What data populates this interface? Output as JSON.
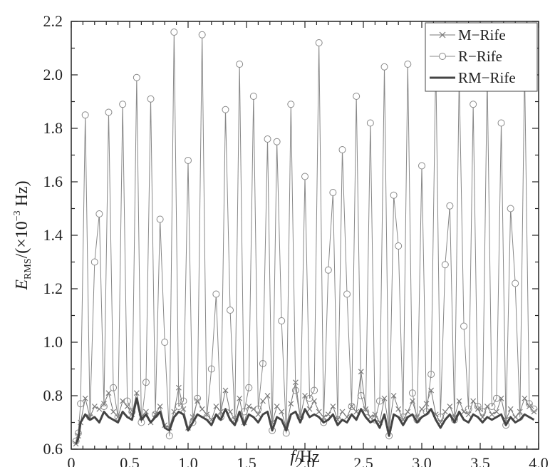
{
  "chart_data": {
    "type": "line",
    "xlabel_italic": "f",
    "xlabel_unit": "/Hz",
    "ylabel_italic": "E",
    "ylabel_sub": "RMS",
    "ylabel_unit": "/(×10",
    "ylabel_exp": "−3",
    "ylabel_tail": " Hz)",
    "xlim": [
      0,
      4
    ],
    "ylim": [
      0.6,
      2.2
    ],
    "xticks": [
      0,
      0.5,
      1,
      1.5,
      2,
      2.5,
      3,
      3.5,
      4
    ],
    "xtick_labels": [
      "0",
      "0.5",
      "1.0",
      "1.5",
      "2.0",
      "2.5",
      "3.0",
      "3.5",
      "4.0"
    ],
    "yticks": [
      0.6,
      0.8,
      1.0,
      1.2,
      1.4,
      1.6,
      1.8,
      2.0,
      2.2
    ],
    "ytick_labels": [
      "0.6",
      "0.8",
      "1.0",
      "1.2",
      "1.4",
      "1.6",
      "1.8",
      "2.0",
      "2.2"
    ],
    "legend_position": "top-right",
    "grid": false,
    "series": [
      {
        "name": "M−Rife",
        "marker": "x",
        "color": "#777777",
        "x": [
          0.04,
          0.06,
          0.08,
          0.12,
          0.16,
          0.2,
          0.24,
          0.28,
          0.32,
          0.36,
          0.4,
          0.44,
          0.48,
          0.52,
          0.56,
          0.6,
          0.64,
          0.68,
          0.72,
          0.76,
          0.8,
          0.84,
          0.88,
          0.92,
          0.96,
          1.0,
          1.04,
          1.08,
          1.12,
          1.16,
          1.2,
          1.24,
          1.28,
          1.32,
          1.36,
          1.4,
          1.44,
          1.48,
          1.52,
          1.56,
          1.6,
          1.64,
          1.68,
          1.72,
          1.76,
          1.8,
          1.84,
          1.88,
          1.92,
          1.96,
          2.0,
          2.04,
          2.08,
          2.12,
          2.16,
          2.2,
          2.24,
          2.28,
          2.32,
          2.36,
          2.4,
          2.44,
          2.48,
          2.52,
          2.56,
          2.6,
          2.64,
          2.68,
          2.72,
          2.76,
          2.8,
          2.84,
          2.88,
          2.92,
          2.96,
          3.0,
          3.04,
          3.08,
          3.12,
          3.16,
          3.2,
          3.24,
          3.28,
          3.32,
          3.36,
          3.4,
          3.44,
          3.48,
          3.52,
          3.56,
          3.6,
          3.64,
          3.68,
          3.72,
          3.76,
          3.8,
          3.84,
          3.88,
          3.92,
          3.96
        ],
        "values": [
          0.62,
          0.65,
          0.7,
          0.79,
          0.72,
          0.76,
          0.75,
          0.77,
          0.81,
          0.74,
          0.72,
          0.78,
          0.76,
          0.73,
          0.81,
          0.72,
          0.74,
          0.7,
          0.73,
          0.76,
          0.69,
          0.68,
          0.74,
          0.83,
          0.75,
          0.68,
          0.72,
          0.78,
          0.75,
          0.73,
          0.71,
          0.76,
          0.74,
          0.82,
          0.74,
          0.71,
          0.79,
          0.7,
          0.76,
          0.75,
          0.73,
          0.78,
          0.8,
          0.7,
          0.76,
          0.74,
          0.68,
          0.77,
          0.85,
          0.72,
          0.8,
          0.75,
          0.78,
          0.74,
          0.72,
          0.73,
          0.76,
          0.71,
          0.74,
          0.72,
          0.76,
          0.74,
          0.89,
          0.75,
          0.72,
          0.73,
          0.7,
          0.79,
          0.68,
          0.8,
          0.75,
          0.71,
          0.74,
          0.78,
          0.72,
          0.75,
          0.77,
          0.82,
          0.73,
          0.7,
          0.74,
          0.76,
          0.72,
          0.78,
          0.74,
          0.73,
          0.78,
          0.75,
          0.72,
          0.76,
          0.73,
          0.74,
          0.79,
          0.71,
          0.75,
          0.72,
          0.74,
          0.79,
          0.76,
          0.74
        ]
      },
      {
        "name": "R−Rife",
        "marker": "circle",
        "color": "#888888",
        "x": [
          0.04,
          0.06,
          0.08,
          0.12,
          0.16,
          0.2,
          0.24,
          0.28,
          0.32,
          0.36,
          0.4,
          0.44,
          0.48,
          0.52,
          0.56,
          0.6,
          0.64,
          0.68,
          0.72,
          0.76,
          0.8,
          0.84,
          0.88,
          0.92,
          0.96,
          1.0,
          1.04,
          1.08,
          1.12,
          1.16,
          1.2,
          1.24,
          1.28,
          1.32,
          1.36,
          1.4,
          1.44,
          1.48,
          1.52,
          1.56,
          1.6,
          1.64,
          1.68,
          1.72,
          1.76,
          1.8,
          1.84,
          1.88,
          1.92,
          1.96,
          2.0,
          2.04,
          2.08,
          2.12,
          2.16,
          2.2,
          2.24,
          2.28,
          2.32,
          2.36,
          2.4,
          2.44,
          2.48,
          2.52,
          2.56,
          2.6,
          2.64,
          2.68,
          2.72,
          2.76,
          2.8,
          2.84,
          2.88,
          2.92,
          2.96,
          3.0,
          3.04,
          3.08,
          3.12,
          3.16,
          3.2,
          3.24,
          3.28,
          3.32,
          3.36,
          3.4,
          3.44,
          3.48,
          3.52,
          3.56,
          3.6,
          3.64,
          3.68,
          3.72,
          3.76,
          3.8,
          3.84,
          3.88,
          3.92,
          3.96
        ],
        "values": [
          0.63,
          0.66,
          0.77,
          1.85,
          0.72,
          1.3,
          1.48,
          0.76,
          1.86,
          0.83,
          0.72,
          1.89,
          0.78,
          0.74,
          1.99,
          0.7,
          0.85,
          1.91,
          0.73,
          1.46,
          1.0,
          0.65,
          2.16,
          0.76,
          0.78,
          1.68,
          0.7,
          0.79,
          2.15,
          0.72,
          0.9,
          1.18,
          0.72,
          1.87,
          1.12,
          0.71,
          2.04,
          0.74,
          0.83,
          1.92,
          0.75,
          0.92,
          1.76,
          0.67,
          1.75,
          1.08,
          0.66,
          1.89,
          0.82,
          0.72,
          1.62,
          0.79,
          0.82,
          2.12,
          0.7,
          1.27,
          1.56,
          0.71,
          1.72,
          1.18,
          0.76,
          1.92,
          0.8,
          0.74,
          1.82,
          0.71,
          0.78,
          2.03,
          0.65,
          1.55,
          1.36,
          0.72,
          2.04,
          0.81,
          0.71,
          1.66,
          0.74,
          0.88,
          2.05,
          0.72,
          1.29,
          1.51,
          0.71,
          2.0,
          1.06,
          0.75,
          1.89,
          0.76,
          0.74,
          2.0,
          0.76,
          0.79,
          1.82,
          0.69,
          1.5,
          1.22,
          0.72,
          2.02,
          0.77,
          0.75
        ]
      },
      {
        "name": "RM−Rife",
        "marker": "none",
        "color": "#444444",
        "x": [
          0.04,
          0.06,
          0.08,
          0.12,
          0.16,
          0.2,
          0.24,
          0.28,
          0.32,
          0.36,
          0.4,
          0.44,
          0.48,
          0.52,
          0.56,
          0.6,
          0.64,
          0.68,
          0.72,
          0.76,
          0.8,
          0.84,
          0.88,
          0.92,
          0.96,
          1.0,
          1.04,
          1.08,
          1.12,
          1.16,
          1.2,
          1.24,
          1.28,
          1.32,
          1.36,
          1.4,
          1.44,
          1.48,
          1.52,
          1.56,
          1.6,
          1.64,
          1.68,
          1.72,
          1.76,
          1.8,
          1.84,
          1.88,
          1.92,
          1.96,
          2.0,
          2.04,
          2.08,
          2.12,
          2.16,
          2.2,
          2.24,
          2.28,
          2.32,
          2.36,
          2.4,
          2.44,
          2.48,
          2.52,
          2.56,
          2.6,
          2.64,
          2.68,
          2.72,
          2.76,
          2.8,
          2.84,
          2.88,
          2.92,
          2.96,
          3.0,
          3.04,
          3.08,
          3.12,
          3.16,
          3.2,
          3.24,
          3.28,
          3.32,
          3.36,
          3.4,
          3.44,
          3.48,
          3.52,
          3.56,
          3.6,
          3.64,
          3.68,
          3.72,
          3.76,
          3.8,
          3.84,
          3.88,
          3.92,
          3.96
        ],
        "values": [
          0.62,
          0.64,
          0.7,
          0.73,
          0.71,
          0.72,
          0.7,
          0.74,
          0.72,
          0.71,
          0.7,
          0.74,
          0.72,
          0.71,
          0.79,
          0.71,
          0.73,
          0.7,
          0.72,
          0.74,
          0.68,
          0.67,
          0.72,
          0.74,
          0.73,
          0.67,
          0.7,
          0.73,
          0.72,
          0.71,
          0.69,
          0.73,
          0.71,
          0.75,
          0.71,
          0.69,
          0.74,
          0.69,
          0.73,
          0.72,
          0.7,
          0.73,
          0.74,
          0.67,
          0.72,
          0.71,
          0.67,
          0.73,
          0.74,
          0.7,
          0.75,
          0.72,
          0.73,
          0.72,
          0.7,
          0.71,
          0.73,
          0.69,
          0.71,
          0.7,
          0.73,
          0.71,
          0.75,
          0.72,
          0.7,
          0.71,
          0.68,
          0.73,
          0.65,
          0.73,
          0.72,
          0.69,
          0.72,
          0.73,
          0.7,
          0.72,
          0.73,
          0.75,
          0.71,
          0.68,
          0.71,
          0.73,
          0.7,
          0.74,
          0.71,
          0.7,
          0.73,
          0.72,
          0.7,
          0.72,
          0.71,
          0.72,
          0.73,
          0.69,
          0.72,
          0.7,
          0.71,
          0.73,
          0.72,
          0.71
        ]
      }
    ]
  }
}
